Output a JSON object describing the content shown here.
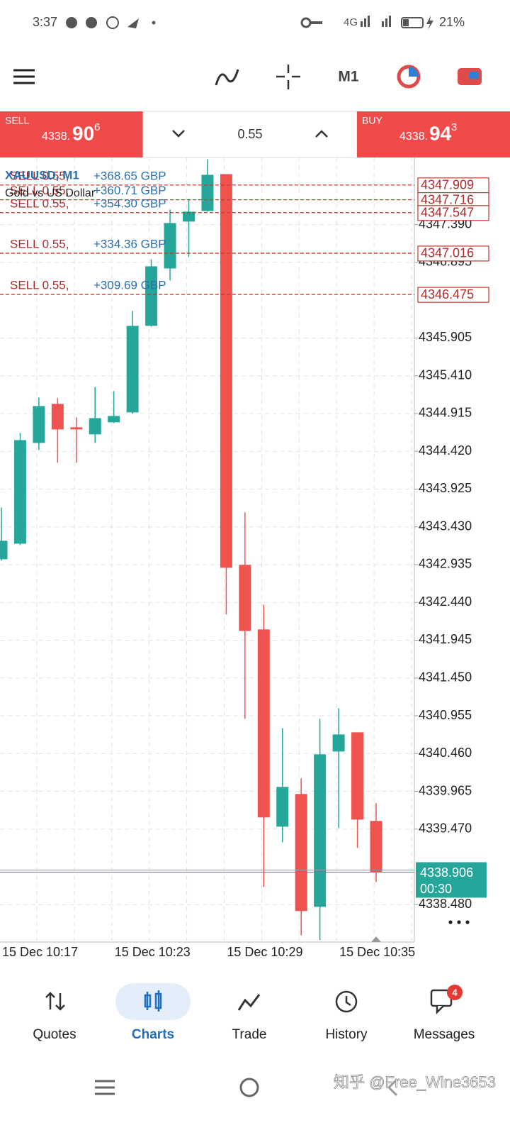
{
  "status_bar": {
    "time": "3:37",
    "network": "4G",
    "battery": "21%"
  },
  "toolbar": {
    "timeframe": "M1"
  },
  "trade_panel": {
    "sell": {
      "label": "SELL",
      "price_main": "4338.",
      "price_big": "90",
      "price_sup": "6"
    },
    "buy": {
      "label": "BUY",
      "price_main": "4338.",
      "price_big": "94",
      "price_sup": "3"
    },
    "volume": "0.55"
  },
  "chart_data": {
    "type": "candlestick",
    "title": "XAUUSD, M1",
    "subtitle": "Gold vs US Dollar",
    "categories": [
      "15 Dec 10:17",
      null,
      null,
      null,
      null,
      null,
      "15 Dec 10:23",
      null,
      null,
      null,
      null,
      null,
      "15 Dec 10:29",
      null,
      null,
      null,
      null,
      null,
      "15 Dec 10:35",
      null,
      null
    ],
    "open": [
      4343.006,
      4343.21,
      4344.53,
      4345.041,
      4344.735,
      4344.642,
      4344.8,
      4344.93,
      4346.064,
      4346.816,
      4347.43,
      4347.569,
      4348.052,
      4342.932,
      4342.086,
      4339.502,
      4339.93,
      4338.452,
      4340.487,
      4340.738,
      4339.577
    ],
    "high": [
      4343.684,
      4344.66,
      4345.125,
      4345.116,
      4344.865,
      4345.264,
      4345.209,
      4346.259,
      4346.937,
      4347.588,
      4347.727,
      4348.248,
      4348.052,
      4343.619,
      4342.411,
      4340.794,
      4340.134,
      4340.915,
      4341.054,
      4340.738,
      4339.809
    ],
    "low": [
      4342.987,
      4343.192,
      4344.437,
      4344.27,
      4344.27,
      4344.53,
      4344.79,
      4344.911,
      4346.054,
      4346.658,
      4346.965,
      4347.56,
      4342.281,
      4340.915,
      4338.712,
      4339.298,
      4338.08,
      4338.015,
      4339.484,
      4339.223,
      4338.777
    ],
    "close": [
      4343.248,
      4344.567,
      4345.013,
      4344.707,
      4344.707,
      4344.855,
      4344.883,
      4346.064,
      4346.844,
      4347.411,
      4347.56,
      4348.043,
      4342.894,
      4342.067,
      4339.623,
      4340.023,
      4338.396,
      4340.45,
      4340.71,
      4339.595,
      4338.906
    ],
    "up_color": "#26a69a",
    "down_color": "#ef5350",
    "ylim": [
      4337.99,
      4348.27
    ],
    "yticks": [
      {
        "value": 4347.39,
        "label": "4347.390"
      },
      {
        "value": 4346.895,
        "label": "4346.895"
      },
      {
        "value": 4345.905,
        "label": "4345.905"
      },
      {
        "value": 4345.41,
        "label": "4345.410"
      },
      {
        "value": 4344.915,
        "label": "4344.915"
      },
      {
        "value": 4344.42,
        "label": "4344.420"
      },
      {
        "value": 4343.925,
        "label": "4343.925"
      },
      {
        "value": 4343.43,
        "label": "4343.430"
      },
      {
        "value": 4342.935,
        "label": "4342.935"
      },
      {
        "value": 4342.44,
        "label": "4342.440"
      },
      {
        "value": 4341.945,
        "label": "4341.945"
      },
      {
        "value": 4341.45,
        "label": "4341.450"
      },
      {
        "value": 4340.955,
        "label": "4340.955"
      },
      {
        "value": 4340.46,
        "label": "4340.460"
      },
      {
        "value": 4339.965,
        "label": "4339.965"
      },
      {
        "value": 4339.47,
        "label": "4339.470"
      },
      {
        "value": 4338.48,
        "label": "4338.480"
      }
    ],
    "grid": true,
    "orders": [
      {
        "label": "SELL 0.55,",
        "profit": "+368.65 GBP",
        "price": 4347.909
      },
      {
        "label": "SELL 0.55,",
        "profit": "+360.71 GBP",
        "price": 4347.716
      },
      {
        "label": "SELL 0.55,",
        "profit": "+354.30 GBP",
        "price": 4347.547
      },
      {
        "label": "SELL 0.55,",
        "profit": "+334.36 GBP",
        "price": 4347.016
      },
      {
        "label": "SELL 0.55,",
        "profit": "+309.69 GBP",
        "price": 4346.475
      }
    ],
    "current_price": 4338.906,
    "countdown": "00:30"
  },
  "nav": {
    "items": [
      {
        "label": "Quotes"
      },
      {
        "label": "Charts"
      },
      {
        "label": "Trade"
      },
      {
        "label": "History"
      },
      {
        "label": "Messages"
      }
    ],
    "badge": 4
  },
  "watermark": "知乎 @Free_Wine3653"
}
